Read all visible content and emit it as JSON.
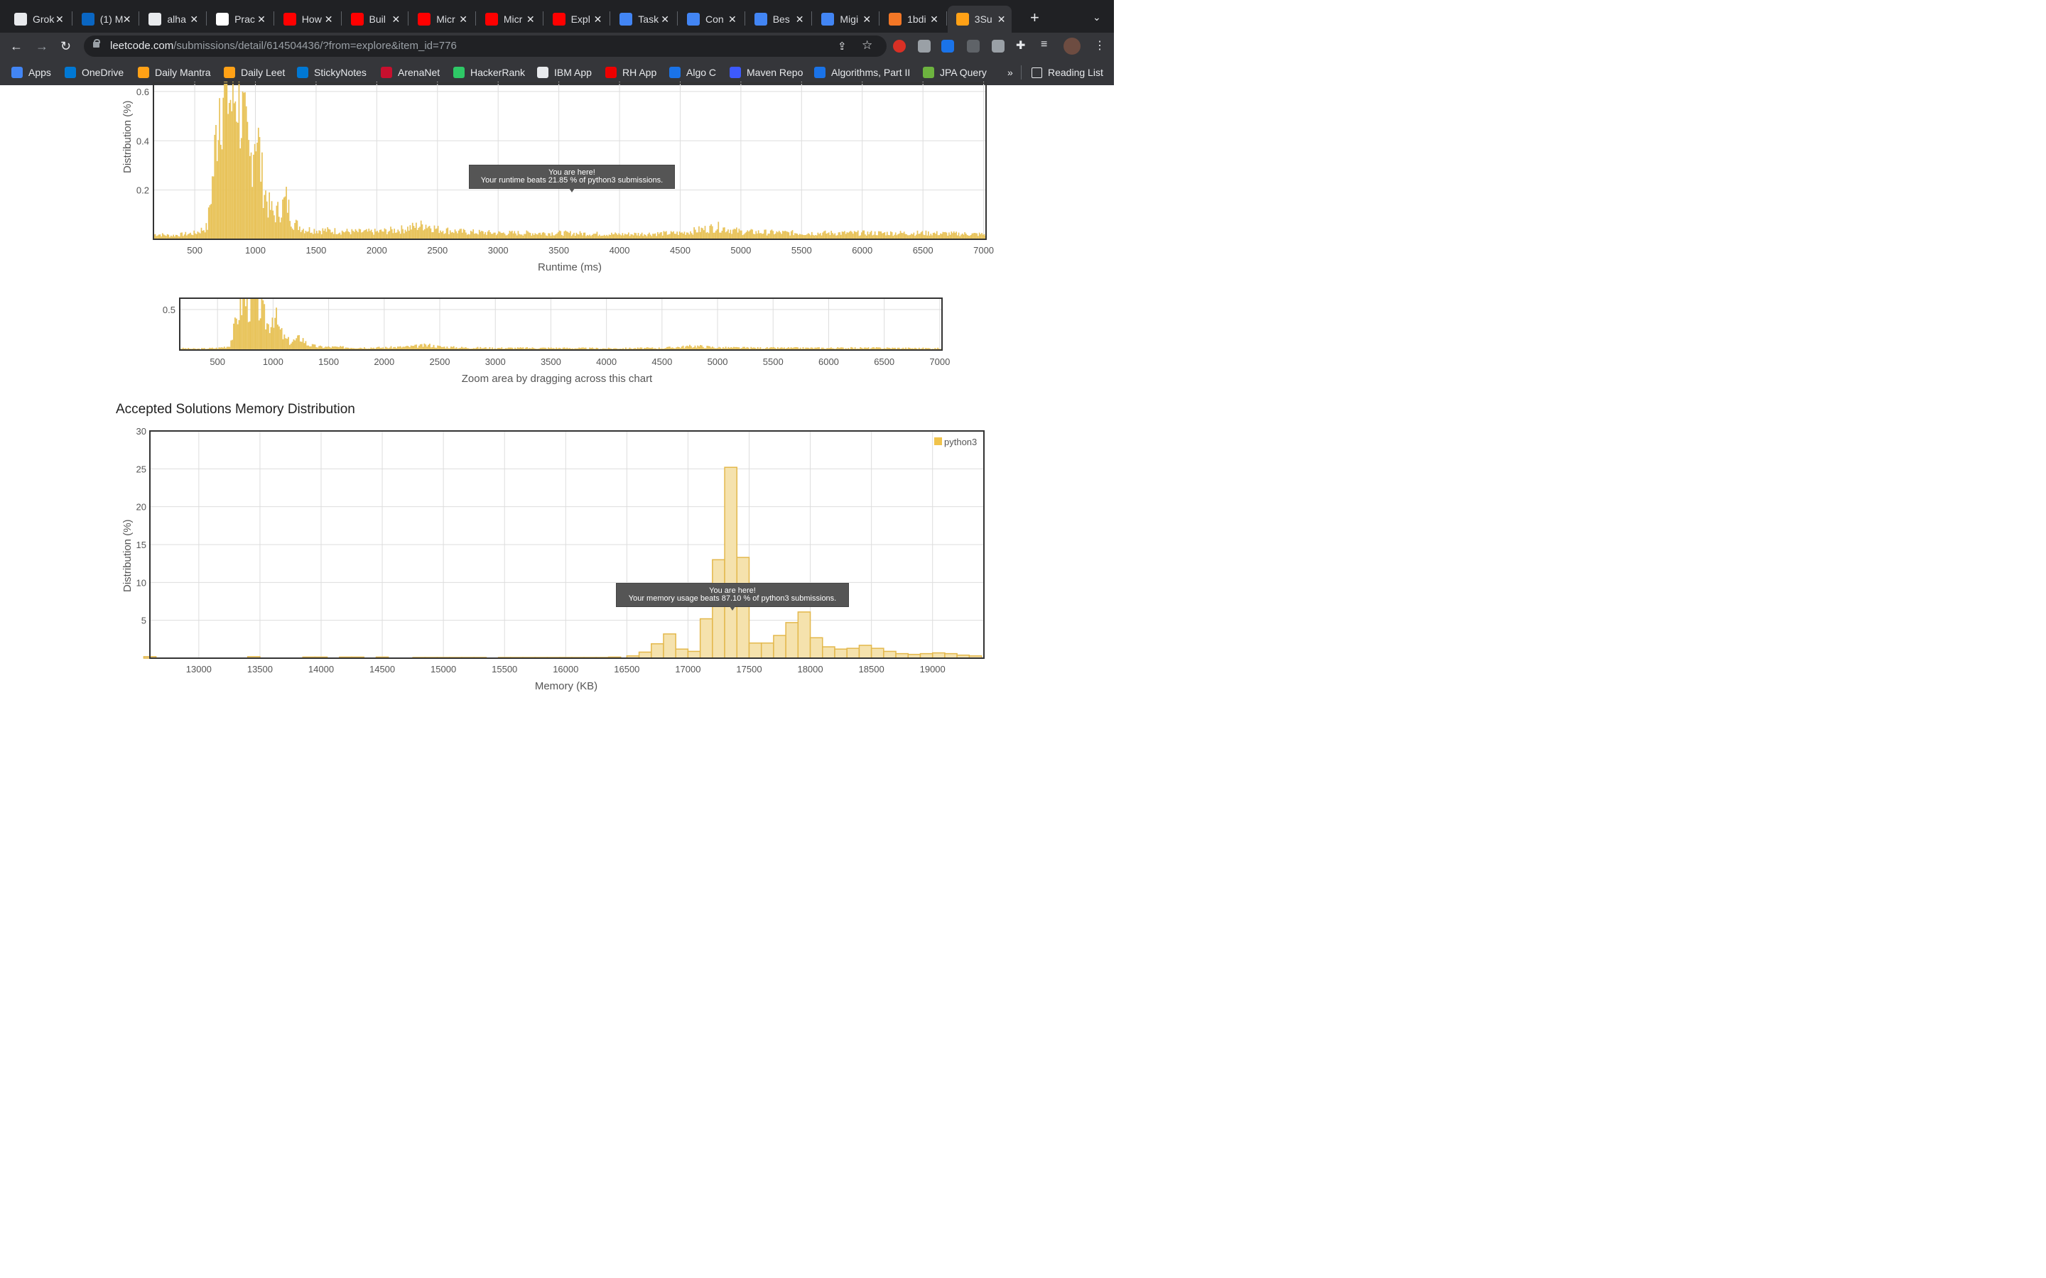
{
  "browser": {
    "tabs": [
      {
        "title": "Grok",
        "icon": "terminal-icon",
        "color": "#e8eaed"
      },
      {
        "title": "(1) M",
        "icon": "linkedin-icon",
        "color": "#0a66c2"
      },
      {
        "title": "alha",
        "icon": "github-icon",
        "color": "#e8eaed"
      },
      {
        "title": "Prac",
        "icon": "check-icon",
        "color": "#ffffff"
      },
      {
        "title": "How",
        "icon": "youtube-icon",
        "color": "#ff0000"
      },
      {
        "title": "Buil",
        "icon": "youtube-icon",
        "color": "#ff0000"
      },
      {
        "title": "Micr",
        "icon": "youtube-icon",
        "color": "#ff0000"
      },
      {
        "title": "Micr",
        "icon": "youtube-icon",
        "color": "#ff0000"
      },
      {
        "title": "Expl",
        "icon": "youtube-icon",
        "color": "#ff0000"
      },
      {
        "title": "Task",
        "icon": "gcloud-icon",
        "color": "#4285f4"
      },
      {
        "title": "Con",
        "icon": "gcloud-icon",
        "color": "#4285f4"
      },
      {
        "title": "Bes",
        "icon": "gcloud-icon",
        "color": "#4285f4"
      },
      {
        "title": "Migi",
        "icon": "gcloud-icon",
        "color": "#4285f4"
      },
      {
        "title": "1bdi",
        "icon": "jupyter-icon",
        "color": "#f37726"
      },
      {
        "title": "3Su",
        "icon": "leetcode-icon",
        "color": "#ffa116"
      }
    ],
    "url_host": "leetcode.com",
    "url_path": "/submissions/detail/614504436/?from=explore&item_id=776",
    "bookmarks": [
      {
        "label": "Apps",
        "color": "#4285f4"
      },
      {
        "label": "OneDrive",
        "color": "#0078d4"
      },
      {
        "label": "Daily Mantra",
        "color": "#ffa116"
      },
      {
        "label": "Daily Leet",
        "color": "#ffa116"
      },
      {
        "label": "StickyNotes",
        "color": "#0078d4"
      },
      {
        "label": "ArenaNet",
        "color": "#c8102e"
      },
      {
        "label": "HackerRank",
        "color": "#2ec866"
      },
      {
        "label": "IBM App",
        "color": "#e8eaed"
      },
      {
        "label": "RH App",
        "color": "#ee0000"
      },
      {
        "label": "Algo C",
        "color": "#1a73e8"
      },
      {
        "label": "Maven Repo",
        "color": "#3d5afe"
      },
      {
        "label": "Algorithms, Part II",
        "color": "#1a73e8"
      },
      {
        "label": "JPA Query",
        "color": "#6db33f"
      }
    ],
    "overflow": "»",
    "reading_list": "Reading List"
  },
  "runtime": {
    "ylabel": "Distribution (%)",
    "xlabel": "Runtime (ms)",
    "tooltip_line1": "You are here!",
    "tooltip_line2": "Your runtime beats 21.85 % of python3 submissions."
  },
  "navigator": {
    "caption": "Zoom area by dragging across this chart"
  },
  "memory": {
    "section_title": "Accepted Solutions Memory Distribution",
    "ylabel": "Distribution (%)",
    "xlabel": "Memory (KB)",
    "legend": "python3",
    "tooltip_line1": "You are here!",
    "tooltip_line2": "Your memory usage beats 87.10 % of python3 submissions."
  },
  "chart_data": [
    {
      "type": "bar",
      "title": "",
      "xlabel": "Runtime (ms)",
      "ylabel": "Distribution (%)",
      "xlim": [
        160,
        7020
      ],
      "ylim": [
        0,
        0.64
      ],
      "x_ticks": [
        500,
        1000,
        1500,
        2000,
        2500,
        3000,
        3500,
        4000,
        4500,
        5000,
        5500,
        6000,
        6500,
        7000
      ],
      "y_ticks": [
        0.2,
        0.4,
        0.6
      ],
      "color": "#e8c35a",
      "grid": true,
      "series": [
        {
          "x": [
            200,
            300,
            400,
            500,
            600,
            650,
            700,
            750,
            800,
            850,
            900,
            950,
            1000,
            1050,
            1100,
            1150,
            1200,
            1250,
            1300,
            1400,
            1600,
            1800,
            2000,
            2200,
            2400,
            2500,
            2700,
            3000,
            3500,
            4000,
            4500,
            4800,
            5000,
            5500,
            6000,
            6500,
            7000
          ],
          "values": [
            0.02,
            0.015,
            0.02,
            0.025,
            0.05,
            0.28,
            0.6,
            0.64,
            0.55,
            0.62,
            0.45,
            0.3,
            0.48,
            0.25,
            0.14,
            0.1,
            0.12,
            0.16,
            0.07,
            0.04,
            0.035,
            0.03,
            0.03,
            0.04,
            0.06,
            0.04,
            0.03,
            0.025,
            0.025,
            0.02,
            0.025,
            0.05,
            0.03,
            0.025,
            0.025,
            0.025,
            0.02
          ]
        }
      ]
    },
    {
      "type": "bar",
      "title": "",
      "xlabel": "Zoom area by dragging across this chart",
      "ylabel": "",
      "xlim": [
        160,
        7020
      ],
      "ylim": [
        0,
        0.64
      ],
      "x_ticks": [
        500,
        1000,
        1500,
        2000,
        2500,
        3000,
        3500,
        4000,
        4500,
        5000,
        5500,
        6000,
        6500,
        7000
      ],
      "y_ticks": [
        0.5
      ],
      "color": "#e8c35a",
      "grid": true
    },
    {
      "type": "bar",
      "title": "Accepted Solutions Memory Distribution",
      "xlabel": "Memory (KB)",
      "ylabel": "Distribution (%)",
      "xlim": [
        12600,
        19420
      ],
      "ylim": [
        0,
        30
      ],
      "x_ticks": [
        13000,
        13500,
        14000,
        14500,
        15000,
        15500,
        16000,
        16500,
        17000,
        17500,
        18000,
        18500,
        19000
      ],
      "y_ticks": [
        5,
        10,
        15,
        20,
        25,
        30
      ],
      "grid": true,
      "legend": "top-right",
      "series": [
        {
          "name": "python3",
          "color": "#f5e2ad",
          "x": [
            12600,
            13450,
            13900,
            14000,
            14200,
            14300,
            14500,
            14800,
            14900,
            15000,
            15100,
            15200,
            15300,
            15500,
            15600,
            15700,
            15800,
            15900,
            16000,
            16100,
            16200,
            16300,
            16400,
            16550,
            16650,
            16750,
            16850,
            16950,
            17050,
            17150,
            17250,
            17350,
            17450,
            17550,
            17650,
            17750,
            17850,
            17950,
            18050,
            18150,
            18250,
            18350,
            18450,
            18550,
            18650,
            18750,
            18850,
            18950,
            19050,
            19150,
            19250,
            19350
          ],
          "values": [
            0.2,
            0.2,
            0.15,
            0.15,
            0.15,
            0.15,
            0.15,
            0.1,
            0.1,
            0.1,
            0.1,
            0.1,
            0.1,
            0.1,
            0.1,
            0.1,
            0.1,
            0.1,
            0.1,
            0.1,
            0.1,
            0.1,
            0.15,
            0.3,
            0.8,
            1.9,
            3.2,
            1.2,
            0.9,
            5.2,
            13.0,
            25.2,
            13.3,
            2.0,
            2.0,
            3.0,
            4.7,
            6.1,
            2.7,
            1.5,
            1.2,
            1.3,
            1.7,
            1.3,
            0.9,
            0.6,
            0.5,
            0.6,
            0.7,
            0.6,
            0.4,
            0.3
          ]
        }
      ]
    }
  ]
}
